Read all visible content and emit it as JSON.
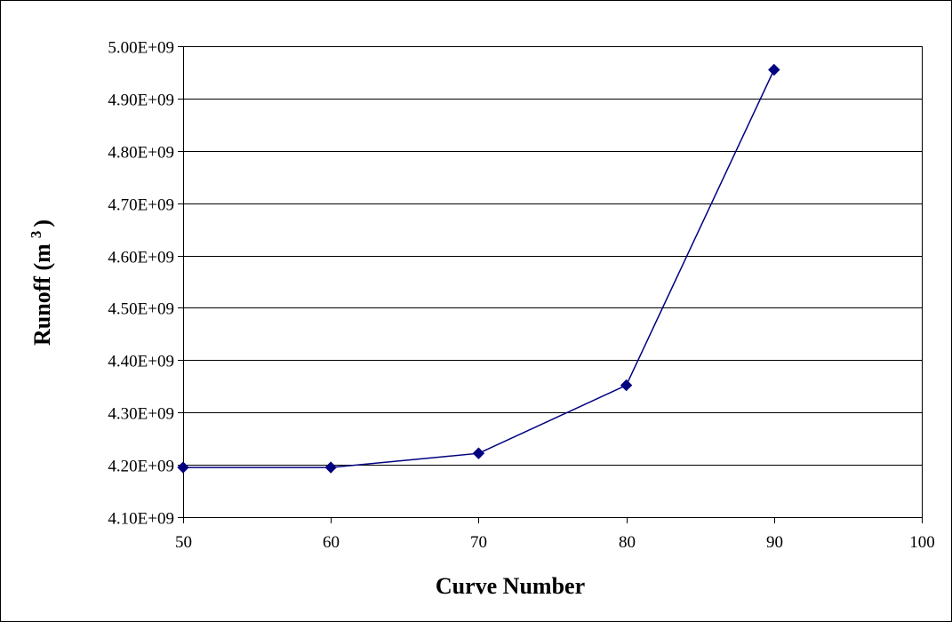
{
  "colors": {
    "series": "#000080",
    "axis": "#000000",
    "background": "#ffffff"
  },
  "chart_data": {
    "type": "line",
    "xlabel": "Curve Number",
    "ylabel": "Runoff (m",
    "ylabel_sup": "3",
    "ylabel_close": ")",
    "xlim": [
      50,
      100
    ],
    "ylim": [
      4100000000,
      5000000000
    ],
    "grid": "horizontal",
    "xticks": [
      50,
      60,
      70,
      80,
      90,
      100
    ],
    "xtick_labels": [
      "50",
      "60",
      "70",
      "80",
      "90",
      "100"
    ],
    "yticks": [
      4100000000,
      4200000000,
      4300000000,
      4400000000,
      4500000000,
      4600000000,
      4700000000,
      4800000000,
      4900000000,
      5000000000
    ],
    "ytick_labels": [
      "4.10E+09",
      "4.20E+09",
      "4.30E+09",
      "4.40E+09",
      "4.50E+09",
      "4.60E+09",
      "4.70E+09",
      "4.80E+09",
      "4.90E+09",
      "5.00E+09"
    ],
    "series": [
      {
        "marker": "diamond",
        "color": "#000080",
        "x": [
          50,
          60,
          70,
          80,
          90
        ],
        "y": [
          4195000000,
          4195000000,
          4222000000,
          4352000000,
          4955000000
        ]
      }
    ]
  }
}
